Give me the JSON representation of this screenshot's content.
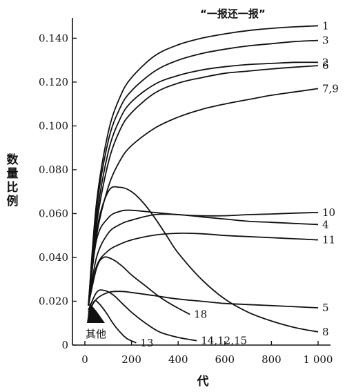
{
  "chart_data": {
    "type": "line",
    "title": "“一报还一报”",
    "xlabel": "代",
    "ylabel": "数量比例",
    "xlim": [
      0,
      1000
    ],
    "ylim": [
      0,
      0.148
    ],
    "grid": false,
    "xticks": [
      {
        "value": 0,
        "label": "0"
      },
      {
        "value": 200,
        "label": "200"
      },
      {
        "value": 400,
        "label": "400"
      },
      {
        "value": 600,
        "label": "600"
      },
      {
        "value": 800,
        "label": "800"
      },
      {
        "value": 1000,
        "label": "1 000"
      }
    ],
    "yticks": [
      {
        "value": 0,
        "label": "0"
      },
      {
        "value": 0.02,
        "label": "0.020"
      },
      {
        "value": 0.04,
        "label": "0.040"
      },
      {
        "value": 0.06,
        "label": "0.060"
      },
      {
        "value": 0.08,
        "label": "0.080"
      },
      {
        "value": 0.1,
        "label": "0.100"
      },
      {
        "value": 0.12,
        "label": "0.120"
      },
      {
        "value": 0.14,
        "label": "0.140"
      }
    ],
    "series": [
      {
        "name": "1",
        "x": [
          15,
          50,
          100,
          150,
          200,
          300,
          400,
          500,
          600,
          700,
          800,
          900,
          1000
        ],
        "y": [
          0.018,
          0.065,
          0.097,
          0.113,
          0.122,
          0.132,
          0.137,
          0.14,
          0.142,
          0.1435,
          0.1445,
          0.1452,
          0.1457
        ]
      },
      {
        "name": "3",
        "x": [
          15,
          50,
          100,
          150,
          200,
          300,
          400,
          500,
          600,
          700,
          800,
          900,
          1000
        ],
        "y": [
          0.018,
          0.062,
          0.093,
          0.108,
          0.116,
          0.125,
          0.13,
          0.133,
          0.135,
          0.1365,
          0.1375,
          0.1385,
          0.139
        ]
      },
      {
        "name": "2",
        "x": [
          15,
          50,
          100,
          150,
          200,
          300,
          400,
          500,
          600,
          700,
          800,
          900,
          1000
        ],
        "y": [
          0.018,
          0.058,
          0.088,
          0.103,
          0.111,
          0.119,
          0.123,
          0.1255,
          0.127,
          0.128,
          0.1285,
          0.129,
          0.129
        ]
      },
      {
        "name": "6",
        "x": [
          15,
          50,
          100,
          150,
          200,
          300,
          400,
          500,
          600,
          700,
          800,
          900,
          1000
        ],
        "y": [
          0.018,
          0.055,
          0.083,
          0.098,
          0.106,
          0.115,
          0.1195,
          0.122,
          0.124,
          0.125,
          0.126,
          0.1268,
          0.1275
        ]
      },
      {
        "name": "7,9",
        "x": [
          15,
          50,
          100,
          150,
          200,
          300,
          400,
          500,
          600,
          700,
          800,
          900,
          1000
        ],
        "y": [
          0.018,
          0.05,
          0.072,
          0.084,
          0.091,
          0.099,
          0.104,
          0.1075,
          0.11,
          0.112,
          0.114,
          0.1155,
          0.117
        ]
      },
      {
        "name": "10",
        "x": [
          15,
          50,
          100,
          150,
          200,
          300,
          400,
          500,
          600,
          700,
          800,
          900,
          1000
        ],
        "y": [
          0.018,
          0.048,
          0.058,
          0.061,
          0.0615,
          0.0605,
          0.0595,
          0.059,
          0.059,
          0.0595,
          0.0598,
          0.0602,
          0.0605
        ]
      },
      {
        "name": "4",
        "x": [
          15,
          50,
          100,
          150,
          200,
          300,
          400,
          500,
          600,
          700,
          800,
          900,
          1000
        ],
        "y": [
          0.018,
          0.04,
          0.051,
          0.055,
          0.057,
          0.0595,
          0.0595,
          0.0585,
          0.0575,
          0.0565,
          0.056,
          0.0555,
          0.055
        ]
      },
      {
        "name": "11",
        "x": [
          15,
          50,
          100,
          150,
          200,
          300,
          400,
          500,
          600,
          700,
          800,
          900,
          1000
        ],
        "y": [
          0.018,
          0.036,
          0.043,
          0.046,
          0.048,
          0.0502,
          0.051,
          0.0508,
          0.05,
          0.0495,
          0.049,
          0.0485,
          0.048
        ]
      },
      {
        "name": "8",
        "x": [
          15,
          50,
          100,
          150,
          200,
          250,
          300,
          350,
          400,
          500,
          600,
          700,
          800,
          900,
          1000
        ],
        "y": [
          0.018,
          0.052,
          0.07,
          0.072,
          0.07,
          0.065,
          0.058,
          0.05,
          0.042,
          0.03,
          0.021,
          0.015,
          0.011,
          0.008,
          0.006
        ]
      },
      {
        "name": "5",
        "x": [
          15,
          50,
          100,
          150,
          200,
          300,
          400,
          500,
          600,
          700,
          800,
          900,
          1000
        ],
        "y": [
          0.015,
          0.021,
          0.024,
          0.0245,
          0.024,
          0.0225,
          0.021,
          0.02,
          0.019,
          0.0185,
          0.018,
          0.0175,
          0.017
        ]
      },
      {
        "name": "18",
        "x": [
          15,
          50,
          80,
          120,
          160,
          200,
          260,
          320,
          380,
          450
        ],
        "y": [
          0.018,
          0.035,
          0.04,
          0.039,
          0.036,
          0.032,
          0.027,
          0.022,
          0.018,
          0.014
        ]
      },
      {
        "name": "14,12,15",
        "x": [
          15,
          50,
          80,
          120,
          160,
          200,
          260,
          320,
          400,
          480
        ],
        "y": [
          0.016,
          0.024,
          0.025,
          0.023,
          0.019,
          0.015,
          0.01,
          0.006,
          0.0035,
          0.002
        ]
      },
      {
        "name": "13",
        "x": [
          15,
          40,
          60,
          90,
          120,
          150,
          180,
          220
        ],
        "y": [
          0.014,
          0.02,
          0.019,
          0.015,
          0.01,
          0.006,
          0.003,
          0.001
        ]
      }
    ],
    "annotations": [
      {
        "text": "其他"
      }
    ]
  }
}
